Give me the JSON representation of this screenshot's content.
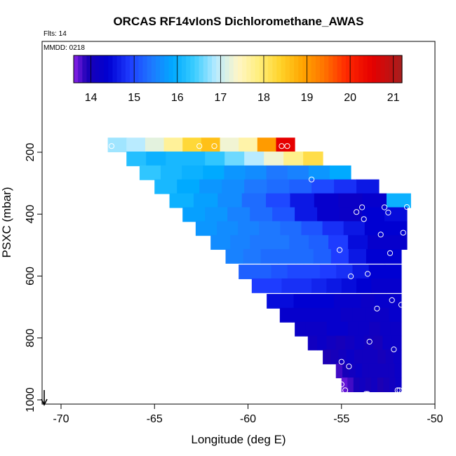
{
  "chart_data": {
    "type": "heatmap",
    "title": "ORCAS RF14vIonS Dichloromethane_AWAS",
    "annotations": {
      "flights": "Flts: 14",
      "date": "MMDD: 0218"
    },
    "xlabel": "Longitude (deg E)",
    "ylabel": "PSXC (mbar)",
    "xlim": [
      -71,
      -50
    ],
    "ylim": [
      1000,
      0
    ],
    "x_ticks": [
      -70,
      -65,
      -60,
      -55,
      -50
    ],
    "x_tick_labels": [
      "-70",
      "-65",
      "-60",
      "-55",
      "-50"
    ],
    "y_ticks": [
      200,
      400,
      600,
      800,
      1000
    ],
    "y_tick_labels": [
      "200",
      "400",
      "600",
      "800",
      "1000"
    ],
    "colorbar": {
      "min": 13.6,
      "max": 21.2,
      "ticks": [
        14,
        15,
        16,
        17,
        18,
        19,
        20,
        21
      ],
      "tick_labels": [
        "14",
        "15",
        "16",
        "17",
        "18",
        "19",
        "20",
        "21"
      ],
      "colormap": [
        [
          13.6,
          "#8a22e8"
        ],
        [
          13.9,
          "#1c00b4"
        ],
        [
          14.4,
          "#0000d2"
        ],
        [
          14.9,
          "#1e3cff"
        ],
        [
          15.4,
          "#1e78ff"
        ],
        [
          15.9,
          "#00aaff"
        ],
        [
          16.4,
          "#3ccdff"
        ],
        [
          16.9,
          "#b9ebff"
        ],
        [
          17.4,
          "#fff6c8"
        ],
        [
          17.9,
          "#ffee7a"
        ],
        [
          18.4,
          "#ffd228"
        ],
        [
          18.9,
          "#ffa500"
        ],
        [
          19.4,
          "#ff7300"
        ],
        [
          19.9,
          "#ff2a00"
        ],
        [
          20.5,
          "#e60000"
        ],
        [
          21.2,
          "#a51e1e"
        ]
      ]
    },
    "rows": [
      {
        "p": 180,
        "x0": -67.5,
        "x1": -57.5,
        "cells": [
          16.8,
          16.9,
          17.2,
          17.7,
          18.3,
          18.6,
          17.3,
          17.6,
          19.0,
          20.5
        ]
      },
      {
        "p": 225,
        "x0": -66.5,
        "x1": -56.0,
        "cells": [
          16.2,
          16.0,
          16.1,
          16.1,
          16.3,
          16.6,
          16.9,
          17.3,
          17.8,
          18.2
        ]
      },
      {
        "p": 270,
        "x0": -65.8,
        "x1": -54.5,
        "cells": [
          16.3,
          16.1,
          16.0,
          15.9,
          15.7,
          15.6,
          15.4,
          15.5,
          15.7,
          15.9
        ]
      },
      {
        "p": 315,
        "x0": -65.0,
        "x1": -53.0,
        "cells": [
          16.1,
          15.9,
          15.7,
          15.6,
          15.4,
          15.3,
          15.2,
          15.0,
          14.8,
          14.6
        ]
      },
      {
        "p": 360,
        "x0": -64.2,
        "x1": -51.3,
        "cells": [
          16.0,
          15.8,
          15.6,
          15.3,
          15.0,
          14.6,
          14.3,
          14.2,
          14.3,
          16.0
        ]
      },
      {
        "p": 405,
        "x0": -63.5,
        "x1": -51.5,
        "cells": [
          15.8,
          15.7,
          15.5,
          15.3,
          15.1,
          14.6,
          14.3,
          14.2,
          14.4,
          14.5
        ]
      },
      {
        "p": 450,
        "x0": -62.8,
        "x1": -51.5,
        "cells": [
          15.7,
          15.6,
          15.5,
          15.4,
          15.3,
          15.1,
          14.8,
          14.6,
          14.4,
          14.4
        ]
      },
      {
        "p": 495,
        "x0": -62.0,
        "x1": -51.5,
        "cells": [
          15.6,
          15.5,
          15.4,
          15.4,
          15.3,
          15.2,
          14.9,
          14.5,
          14.3,
          14.3
        ]
      },
      {
        "p": 540,
        "x0": -61.2,
        "x1": -51.8,
        "cells": [
          15.5,
          15.4,
          15.3,
          15.3,
          15.3,
          15.2,
          14.9,
          14.6,
          14.4,
          14.4
        ]
      },
      {
        "p": 590,
        "x0": -60.5,
        "x1": -51.8,
        "cells": [
          15.2,
          15.2,
          15.1,
          15.0,
          15.0,
          14.9,
          14.8,
          14.6,
          14.4,
          14.4
        ]
      },
      {
        "p": 635,
        "x0": -59.8,
        "x1": -51.8,
        "cells": [
          14.9,
          14.9,
          14.8,
          14.8,
          14.7,
          14.6,
          14.5,
          14.4,
          14.3,
          14.3
        ]
      },
      {
        "p": 685,
        "x0": -59.0,
        "x1": -51.8,
        "cells": [
          14.5,
          14.5,
          14.4,
          14.4,
          14.4,
          14.3,
          14.3,
          14.2,
          14.3,
          14.3
        ]
      },
      {
        "p": 730,
        "x0": -58.3,
        "x1": -51.8,
        "cells": [
          14.3,
          14.3,
          14.3,
          14.3,
          14.3,
          14.2,
          14.2,
          14.2,
          14.2,
          14.3
        ]
      },
      {
        "p": 775,
        "x0": -57.5,
        "x1": -51.8,
        "cells": [
          14.2,
          14.2,
          14.2,
          14.3,
          14.3,
          14.2,
          14.2,
          14.1,
          14.2,
          14.2
        ]
      },
      {
        "p": 820,
        "x0": -56.8,
        "x1": -51.8,
        "cells": [
          14.1,
          14.2,
          14.1,
          14.0,
          14.1,
          14.2,
          14.1,
          14.0,
          14.2,
          14.2
        ]
      },
      {
        "p": 865,
        "x0": -56.0,
        "x1": -51.8,
        "cells": [
          13.9,
          14.0,
          14.1,
          14.2,
          14.1,
          14.1,
          14.1,
          14.0,
          14.1,
          14.2
        ]
      },
      {
        "p": 910,
        "x0": -55.3,
        "x1": -51.8,
        "cells": [
          13.8,
          14.0,
          14.1,
          14.2,
          14.1,
          14.1,
          14.1,
          14.1,
          14.1,
          14.2
        ]
      },
      {
        "p": 955,
        "x0": -55.0,
        "x1": -51.8,
        "cells": [
          13.7,
          13.8,
          14.0,
          14.1,
          14.0,
          14.1,
          13.9,
          14.0,
          14.1,
          14.2
        ]
      }
    ],
    "samples": [
      {
        "lon": -67.3,
        "p": 180
      },
      {
        "lon": -62.6,
        "p": 180
      },
      {
        "lon": -61.8,
        "p": 180
      },
      {
        "lon": -58.2,
        "p": 180
      },
      {
        "lon": -57.9,
        "p": 180
      },
      {
        "lon": -56.6,
        "p": 288
      },
      {
        "lon": -53.9,
        "p": 378
      },
      {
        "lon": -54.2,
        "p": 393
      },
      {
        "lon": -52.7,
        "p": 378
      },
      {
        "lon": -52.5,
        "p": 395
      },
      {
        "lon": -51.5,
        "p": 377
      },
      {
        "lon": -53.8,
        "p": 416
      },
      {
        "lon": -52.9,
        "p": 466
      },
      {
        "lon": -51.7,
        "p": 460
      },
      {
        "lon": -55.1,
        "p": 516
      },
      {
        "lon": -52.4,
        "p": 526
      },
      {
        "lon": -53.6,
        "p": 593
      },
      {
        "lon": -54.5,
        "p": 601
      },
      {
        "lon": -52.3,
        "p": 678
      },
      {
        "lon": -51.8,
        "p": 693
      },
      {
        "lon": -53.1,
        "p": 705
      },
      {
        "lon": -53.5,
        "p": 812
      },
      {
        "lon": -52.2,
        "p": 837
      },
      {
        "lon": -55.0,
        "p": 877
      },
      {
        "lon": -54.6,
        "p": 892
      },
      {
        "lon": -55.0,
        "p": 950
      },
      {
        "lon": -54.8,
        "p": 969
      },
      {
        "lon": -52.0,
        "p": 969
      },
      {
        "lon": -51.9,
        "p": 969
      },
      {
        "lon": -53.7,
        "p": 981
      },
      {
        "lon": -53.6,
        "p": 981
      }
    ],
    "arrow": {
      "lon": -70.9,
      "direction": "down"
    }
  }
}
